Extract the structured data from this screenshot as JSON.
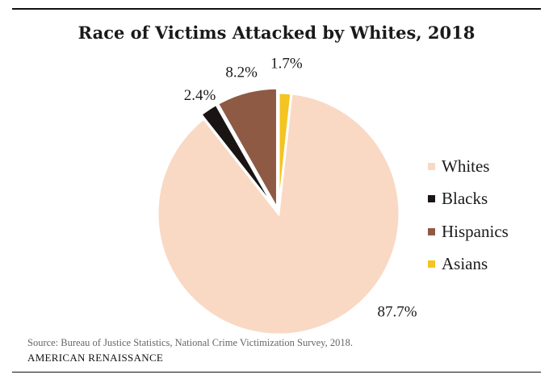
{
  "chart_data": {
    "type": "pie",
    "title": "Race of Victims Attacked by Whites, 2018",
    "categories": [
      "Whites",
      "Blacks",
      "Hispanics",
      "Asians"
    ],
    "values": [
      87.7,
      2.4,
      8.2,
      1.7
    ],
    "value_labels": [
      "87.7%",
      "2.4%",
      "8.2%",
      "1.7%"
    ],
    "colors": [
      "#f9d9c4",
      "#1a1512",
      "#8e5a44",
      "#f4c420"
    ],
    "legend_placement": "right"
  },
  "footer": {
    "source": "Source: Bureau of Justice Statistics, National Crime Victimization Survey, 2018.",
    "brand": "AMERICAN RENAISSANCE"
  }
}
